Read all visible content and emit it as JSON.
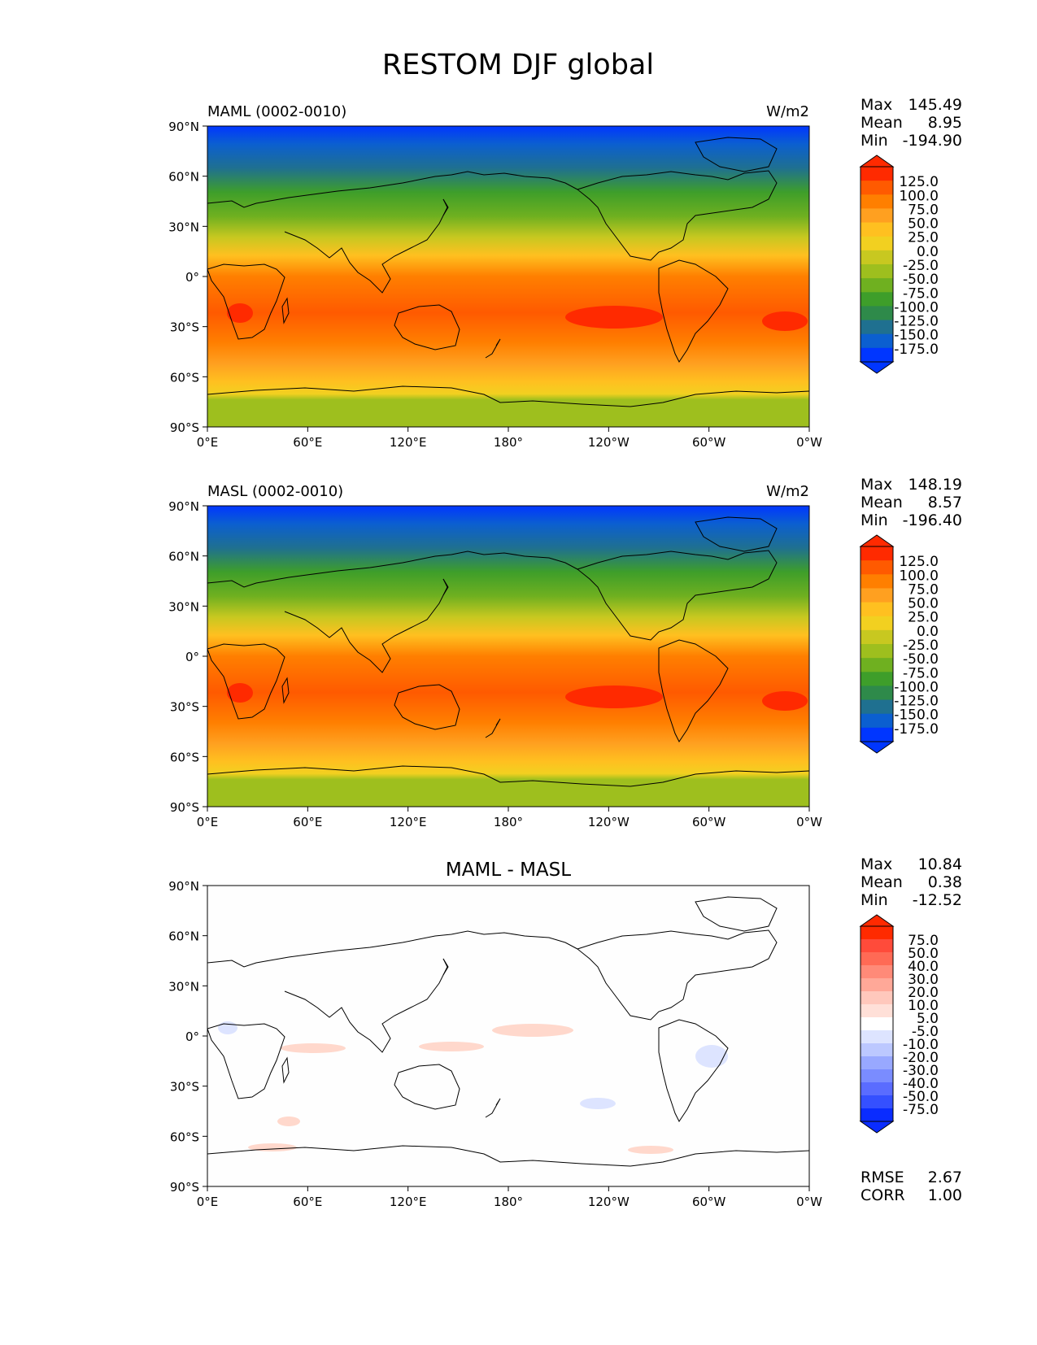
{
  "title": "RESTOM DJF global",
  "lat_labels": [
    "90°N",
    "60°N",
    "30°N",
    "0°",
    "30°S",
    "60°S",
    "90°S"
  ],
  "lon_labels": [
    "0°E",
    "60°E",
    "120°E",
    "180°",
    "120°W",
    "60°W",
    "0°W"
  ],
  "stat_labels": {
    "max": "Max",
    "mean": "Mean",
    "min": "Min",
    "rmse": "RMSE",
    "corr": "CORR"
  },
  "panels": [
    {
      "title_left": "MAML (0002-0010)",
      "units": "W/m2",
      "stats": {
        "max": "145.49",
        "mean": "8.95",
        "min": "-194.90"
      },
      "colorbar": {
        "labels": [
          "125.0",
          "100.0",
          "75.0",
          "50.0",
          "25.0",
          "0.0",
          "-25.0",
          "-50.0",
          "-75.0",
          "-100.0",
          "-125.0",
          "-150.0",
          "-175.0"
        ],
        "colors": [
          "#ff2a00",
          "#ff5a00",
          "#ff7f00",
          "#ffa020",
          "#ffc020",
          "#f2d020",
          "#c8c820",
          "#9ebf1e",
          "#6fb020",
          "#3e9e2a",
          "#2e8a4a",
          "#1f7090",
          "#0b5fd0",
          "#0036ff"
        ]
      }
    },
    {
      "title_left": "MASL (0002-0010)",
      "units": "W/m2",
      "stats": {
        "max": "148.19",
        "mean": "8.57",
        "min": "-196.40"
      },
      "colorbar": {
        "labels": [
          "125.0",
          "100.0",
          "75.0",
          "50.0",
          "25.0",
          "0.0",
          "-25.0",
          "-50.0",
          "-75.0",
          "-100.0",
          "-125.0",
          "-150.0",
          "-175.0"
        ],
        "colors": [
          "#ff2a00",
          "#ff5a00",
          "#ff7f00",
          "#ffa020",
          "#ffc020",
          "#f2d020",
          "#c8c820",
          "#9ebf1e",
          "#6fb020",
          "#3e9e2a",
          "#2e8a4a",
          "#1f7090",
          "#0b5fd0",
          "#0036ff"
        ]
      }
    },
    {
      "title_center": "MAML - MASL",
      "stats": {
        "max": "10.84",
        "mean": "0.38",
        "min": "-12.52"
      },
      "extra_stats": {
        "rmse": "2.67",
        "corr": "1.00"
      },
      "colorbar": {
        "labels": [
          "75.0",
          "50.0",
          "40.0",
          "30.0",
          "20.0",
          "10.0",
          "5.0",
          "-5.0",
          "-10.0",
          "-20.0",
          "-30.0",
          "-40.0",
          "-50.0",
          "-75.0"
        ],
        "colors": [
          "#ff2a00",
          "#ff4b3a",
          "#ff6a55",
          "#ff8a78",
          "#ffa898",
          "#ffc8bc",
          "#ffe0d8",
          "#ffffff",
          "#dde4ff",
          "#bcc8ff",
          "#98a8ff",
          "#7a8cff",
          "#5a6cff",
          "#3550ff",
          "#0a2cff"
        ]
      }
    }
  ],
  "chart_data": {
    "type": "heatmap",
    "title": "RESTOM DJF global",
    "x_ticks": [
      "0°E",
      "60°E",
      "120°E",
      "180°",
      "120°W",
      "60°W",
      "0°W"
    ],
    "y_ticks": [
      "90°N",
      "60°N",
      "30°N",
      "0°",
      "30°S",
      "60°S",
      "90°S"
    ],
    "xlim": [
      0,
      360
    ],
    "ylim": [
      -90,
      90
    ],
    "fields": [
      {
        "name": "MAML (0002-0010)",
        "units": "W/m2",
        "max": 145.49,
        "mean": 8.95,
        "min": -194.9
      },
      {
        "name": "MASL (0002-0010)",
        "units": "W/m2",
        "max": 148.19,
        "mean": 8.57,
        "min": -196.4
      },
      {
        "name": "MAML - MASL",
        "max": 10.84,
        "mean": 0.38,
        "min": -12.52,
        "rmse": 2.67,
        "corr": 1.0
      }
    ]
  }
}
